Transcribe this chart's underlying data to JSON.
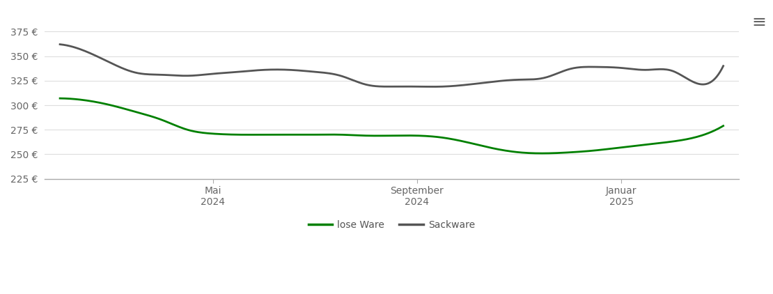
{
  "title": "",
  "background_color": "#ffffff",
  "ylim": [
    225,
    385
  ],
  "yticks": [
    225,
    250,
    275,
    300,
    325,
    350,
    375
  ],
  "ytick_labels": [
    "225 €",
    "250 €",
    "275 €",
    "300 €",
    "325 €",
    "350 €",
    "375 €"
  ],
  "xtick_positions": [
    3,
    7,
    11
  ],
  "xtick_labels": [
    "Mai\n2024",
    "September\n2024",
    "Januar\n2025"
  ],
  "grid_color": "#dddddd",
  "axis_line_color": "#aaaaaa",
  "lose_ware_color": "#008000",
  "sackware_color": "#555555",
  "line_width": 2.0,
  "legend_labels": [
    "lose Ware",
    "Sackware"
  ],
  "months": [
    0,
    1,
    2,
    3,
    4,
    5,
    6,
    7,
    8,
    9,
    10,
    11,
    12,
    13
  ],
  "lose_ware": [
    307,
    305,
    298,
    285,
    273,
    271,
    270,
    270,
    269,
    265,
    253,
    251,
    255,
    262,
    269,
    279
  ],
  "sackware": [
    362,
    355,
    342,
    332,
    330,
    333,
    335,
    336,
    334,
    328,
    320,
    319,
    321,
    325,
    327,
    330,
    335,
    337,
    337,
    335,
    333,
    322,
    320,
    322,
    340
  ],
  "lose_x": [
    0.0,
    0.5,
    1.0,
    1.5,
    2.0,
    2.5,
    3.0,
    3.5,
    4.0,
    4.5,
    5.0,
    5.5,
    6.0,
    6.5,
    7.0,
    7.5,
    8.0,
    8.5,
    9.0,
    9.5,
    10.0,
    10.5,
    11.0,
    11.5,
    12.0,
    12.5,
    13.0
  ],
  "lose_y": [
    307,
    305,
    300,
    293,
    285,
    275,
    271,
    270,
    270,
    270,
    270,
    270,
    269,
    269,
    269,
    267,
    262,
    256,
    252,
    251,
    252,
    254,
    257,
    260,
    263,
    268,
    279
  ],
  "sack_x": [
    0.0,
    0.5,
    1.0,
    1.5,
    2.0,
    2.5,
    3.0,
    3.5,
    4.0,
    4.5,
    5.0,
    5.5,
    6.0,
    6.5,
    7.0,
    7.5,
    8.0,
    8.5,
    9.0,
    9.5,
    10.0,
    10.5,
    11.0,
    11.5,
    12.0,
    12.5,
    13.0
  ],
  "sack_y": [
    362,
    355,
    343,
    333,
    331,
    330,
    332,
    334,
    336,
    336,
    334,
    330,
    321,
    319,
    319,
    319,
    321,
    324,
    326,
    328,
    337,
    339,
    338,
    336,
    335,
    322,
    340
  ]
}
